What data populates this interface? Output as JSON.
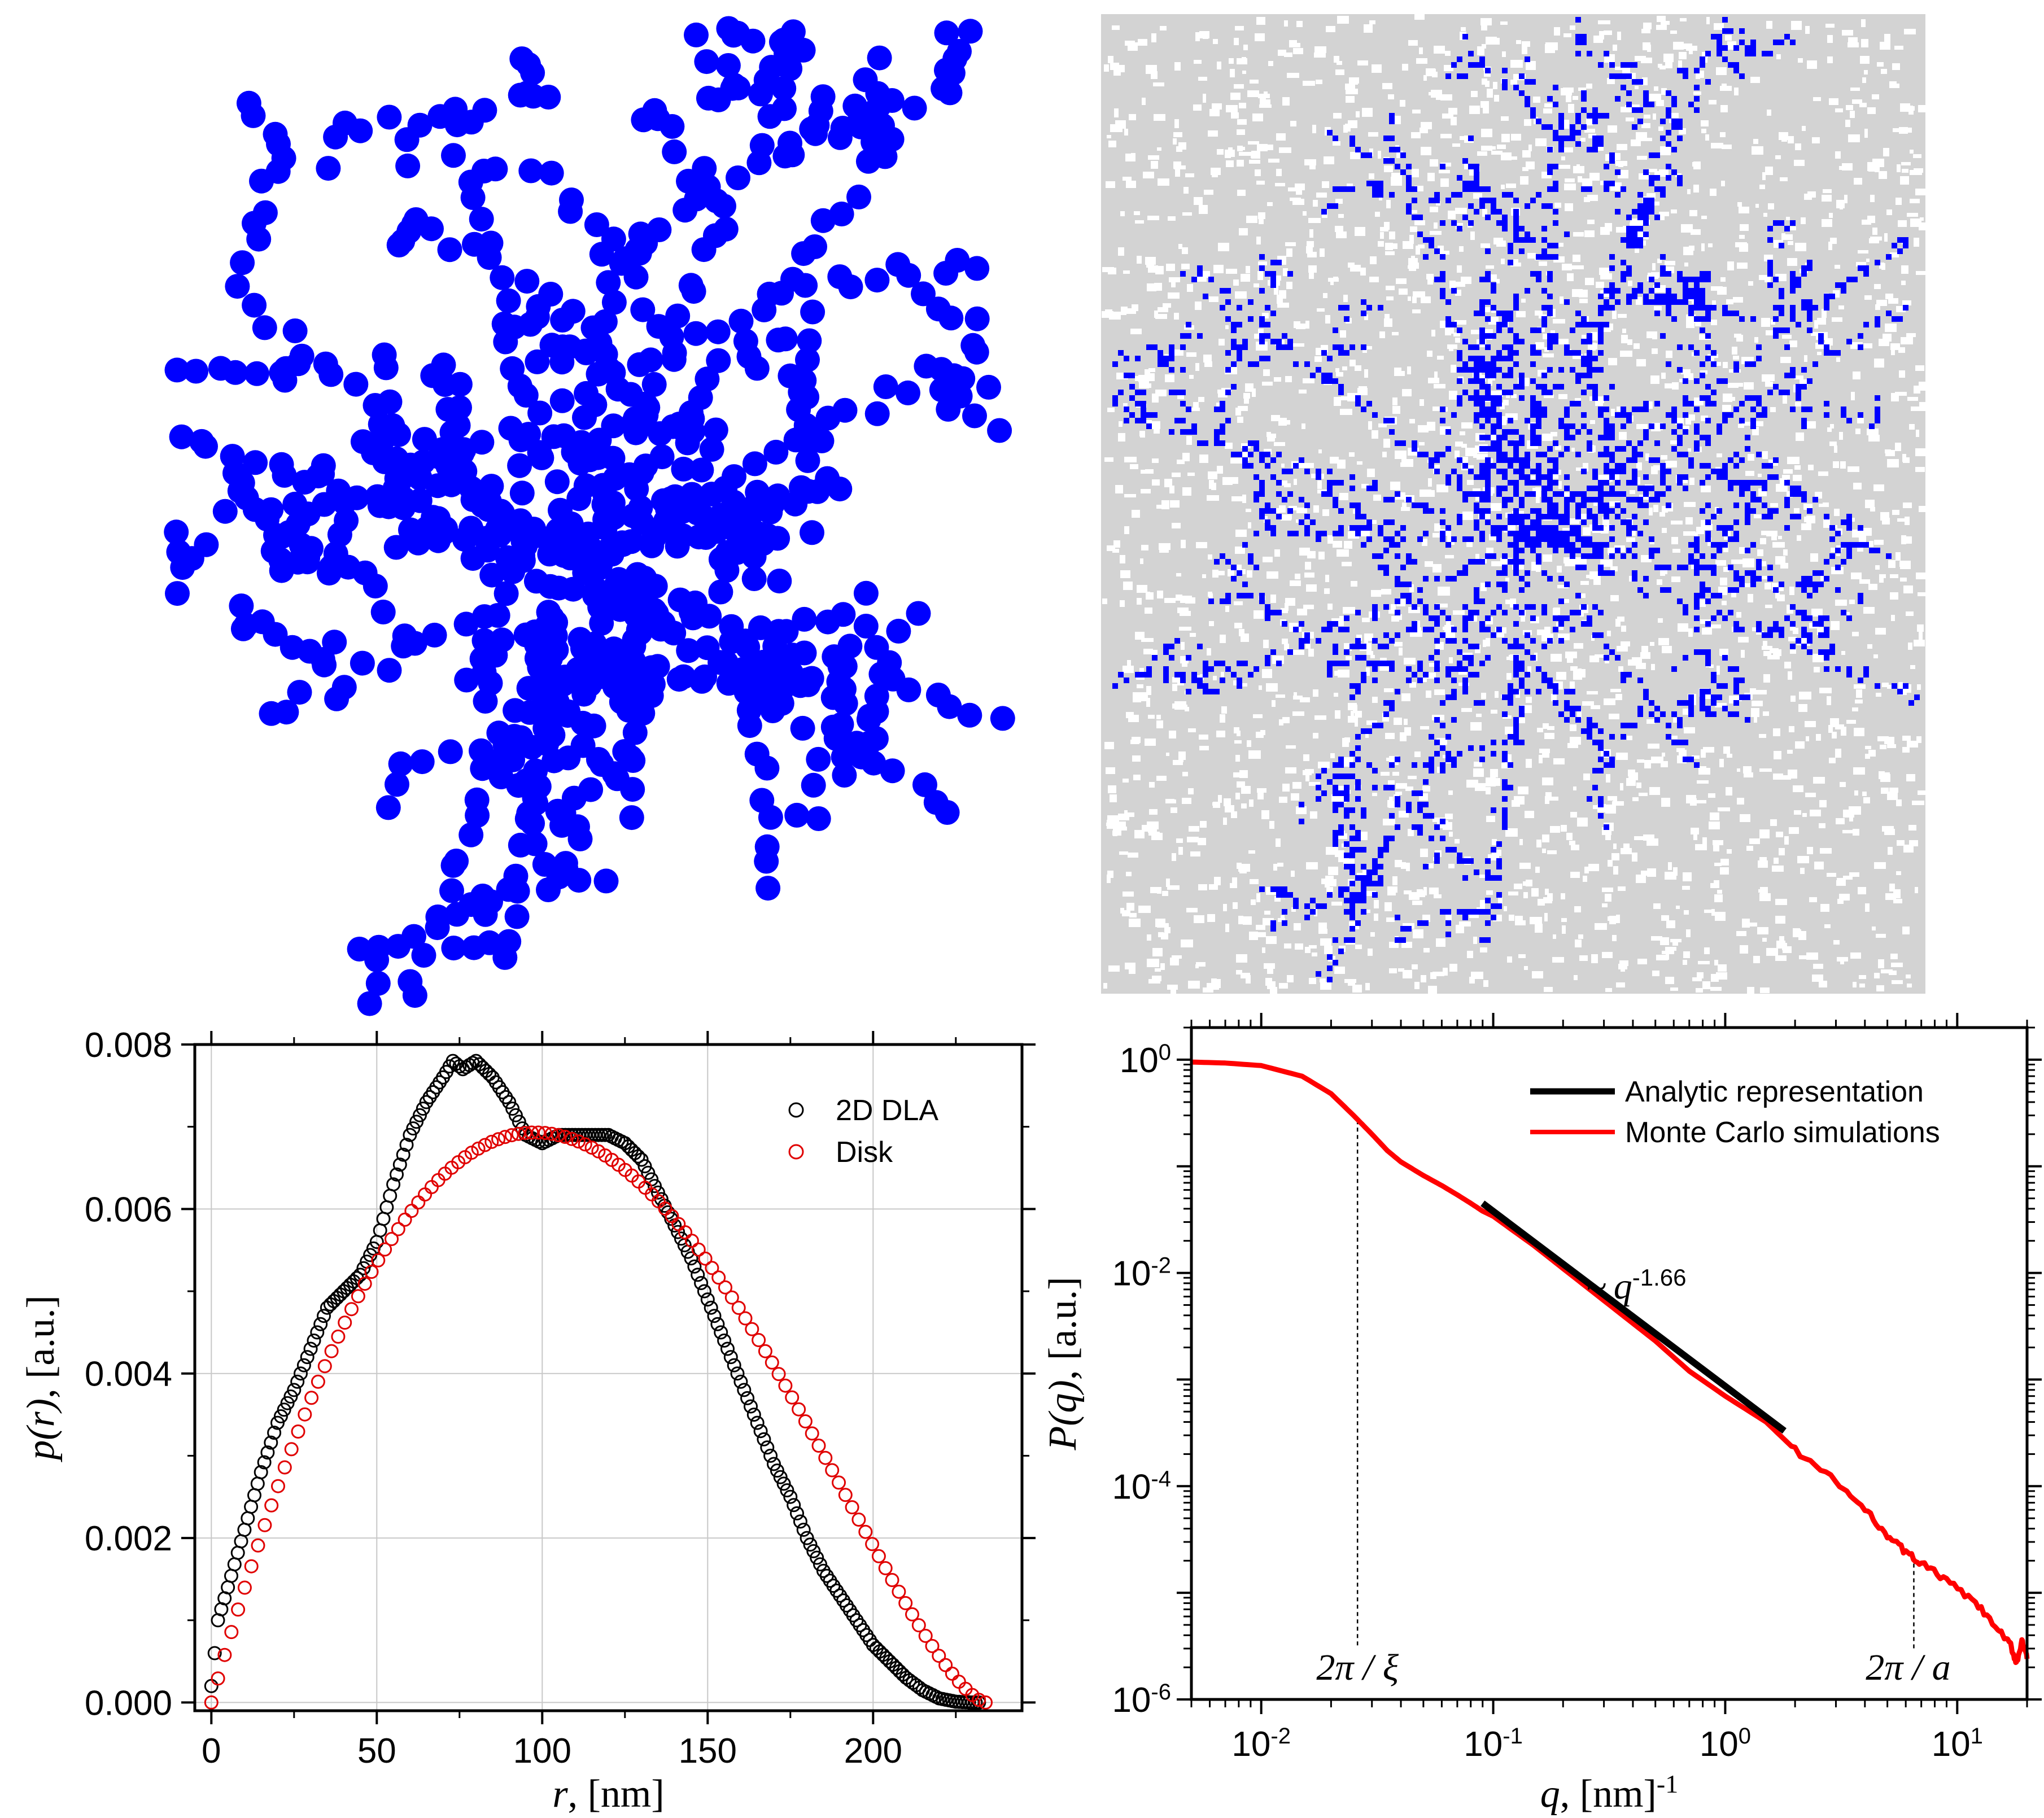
{
  "colors": {
    "dla_blue": "#0000ff",
    "lattice_grey": "#d3d3d3",
    "dla_circle_stroke": "#000000",
    "disk_circle_stroke": "#e00000",
    "mc_line": "#ff0000",
    "analytic_line": "#000000",
    "grid": "#c8c8c8"
  },
  "images": {
    "top_left": "2D off-lattice diffusion-limited aggregate of blue spherical particles",
    "top_right": "2D on-lattice diffusion-limited aggregate (blue) on grey random lattice background"
  },
  "chart_data": [
    {
      "type": "scatter",
      "xlabel": "r, [nm]",
      "xlabel_parts": {
        "var": "r",
        "rest": ", [nm]"
      },
      "ylabel": "p(r), [a.u.]",
      "ylabel_parts": {
        "var": "p(r)",
        "rest": ", [a.u.]"
      },
      "xlim": [
        -5,
        245
      ],
      "ylim": [
        -0.0001,
        0.008
      ],
      "xticks": [
        0,
        50,
        100,
        150,
        200
      ],
      "xtick_labels": [
        "0",
        "50",
        "100",
        "150",
        "200"
      ],
      "yticks": [
        0.0,
        0.002,
        0.004,
        0.006,
        0.008
      ],
      "ytick_labels": [
        "0.000",
        "0.002",
        "0.004",
        "0.006",
        "0.008"
      ],
      "grid": true,
      "legend_position": "top-right",
      "series": [
        {
          "name": "2D DLA",
          "marker": "open-circle",
          "color": "#000000",
          "points": [
            [
              0,
              0.0002
            ],
            [
              1,
              0.0006
            ],
            [
              2,
              0.001
            ],
            [
              5,
              0.0014
            ],
            [
              10,
              0.0021
            ],
            [
              15,
              0.0028
            ],
            [
              20,
              0.0034
            ],
            [
              25,
              0.0038
            ],
            [
              30,
              0.0043
            ],
            [
              35,
              0.0048
            ],
            [
              40,
              0.005
            ],
            [
              45,
              0.0052
            ],
            [
              50,
              0.0056
            ],
            [
              55,
              0.0063
            ],
            [
              60,
              0.0069
            ],
            [
              65,
              0.0073
            ],
            [
              70,
              0.0076
            ],
            [
              73,
              0.0078
            ],
            [
              76,
              0.0077
            ],
            [
              80,
              0.0078
            ],
            [
              85,
              0.0076
            ],
            [
              90,
              0.0073
            ],
            [
              95,
              0.0069
            ],
            [
              100,
              0.0068
            ],
            [
              105,
              0.0069
            ],
            [
              110,
              0.0069
            ],
            [
              115,
              0.0069
            ],
            [
              120,
              0.0069
            ],
            [
              125,
              0.0068
            ],
            [
              130,
              0.0066
            ],
            [
              135,
              0.0062
            ],
            [
              140,
              0.0058
            ],
            [
              145,
              0.0054
            ],
            [
              150,
              0.0049
            ],
            [
              155,
              0.0044
            ],
            [
              160,
              0.0039
            ],
            [
              165,
              0.0034
            ],
            [
              170,
              0.0029
            ],
            [
              175,
              0.0025
            ],
            [
              180,
              0.002
            ],
            [
              185,
              0.0016
            ],
            [
              190,
              0.0013
            ],
            [
              195,
              0.001
            ],
            [
              200,
              0.0007
            ],
            [
              205,
              0.0005
            ],
            [
              210,
              0.0003
            ],
            [
              215,
              0.00015
            ],
            [
              220,
              5e-05
            ],
            [
              225,
              1e-05
            ],
            [
              230,
              0.0
            ]
          ]
        },
        {
          "name": "Disk",
          "marker": "open-circle",
          "color": "#e00000",
          "function": "disk_pr",
          "diameter_nm": 234,
          "peak": 0.00693,
          "x_range": [
            0,
            234
          ],
          "n_points": 117
        }
      ]
    },
    {
      "type": "line",
      "xlabel": "q, [nm]-1",
      "xlabel_parts": {
        "var": "q",
        "rest": ", [nm]",
        "sup": "-1"
      },
      "ylabel": "P(q), [a.u.]",
      "ylabel_parts": {
        "var": "P(q)",
        "rest": ", [a.u.]"
      },
      "xscale": "log",
      "yscale": "log",
      "xlim": [
        0.005,
        20
      ],
      "ylim": [
        1e-06,
        2
      ],
      "xtick_labels": [
        {
          "base": "10",
          "exp": "-2",
          "value": 0.01
        },
        {
          "base": "10",
          "exp": "-1",
          "value": 0.1
        },
        {
          "base": "10",
          "exp": "0",
          "value": 1
        },
        {
          "base": "10",
          "exp": "1",
          "value": 10
        }
      ],
      "ytick_labels": [
        {
          "base": "10",
          "exp": "0",
          "value": 1
        },
        {
          "base": "10",
          "exp": "-2",
          "value": 0.01
        },
        {
          "base": "10",
          "exp": "-4",
          "value": 0.0001
        },
        {
          "base": "10",
          "exp": "-6",
          "value": 1e-06
        }
      ],
      "grid": false,
      "legend_position": "top-right",
      "series": [
        {
          "name": "Analytic representation",
          "color": "#000000",
          "points": [
            [
              0.09,
              0.045
            ],
            [
              1.8,
              0.00033
            ]
          ]
        },
        {
          "name": "Monte Carlo simulations",
          "color": "#ff0000",
          "points": [
            [
              0.005,
              0.95
            ],
            [
              0.007,
              0.93
            ],
            [
              0.01,
              0.88
            ],
            [
              0.015,
              0.7
            ],
            [
              0.02,
              0.48
            ],
            [
              0.025,
              0.3
            ],
            [
              0.03,
              0.2
            ],
            [
              0.035,
              0.14
            ],
            [
              0.04,
              0.11
            ],
            [
              0.05,
              0.082
            ],
            [
              0.06,
              0.066
            ],
            [
              0.07,
              0.054
            ],
            [
              0.08,
              0.045
            ],
            [
              0.09,
              0.038
            ],
            [
              0.1,
              0.034
            ],
            [
              0.15,
              0.018
            ],
            [
              0.2,
              0.011
            ],
            [
              0.3,
              0.0055
            ],
            [
              0.5,
              0.0023
            ],
            [
              0.7,
              0.0012
            ],
            [
              1.0,
              0.0007
            ],
            [
              1.5,
              0.0004
            ],
            [
              2.0,
              0.00022
            ],
            [
              3.0,
              0.00011
            ],
            [
              4.0,
              6e-05
            ],
            [
              5.0,
              3.5e-05
            ],
            [
              6.0,
              2.4e-05
            ],
            [
              7.0,
              1.9e-05
            ],
            [
              9.0,
              1.3e-05
            ],
            [
              12.0,
              8e-06
            ],
            [
              15.0,
              4.5e-06
            ],
            [
              17.0,
              3.2e-06
            ],
            [
              18.0,
              2.2e-06
            ],
            [
              19.0,
              3.5e-06
            ],
            [
              20.0,
              2.4e-06
            ]
          ]
        }
      ],
      "annotations": {
        "slope_prefix": "~",
        "slope_var": "q",
        "slope_exp": "-1.66",
        "xi_label": "2π / ξ",
        "xi_q": 0.026,
        "a_label": "2π / a",
        "a_q": 6.5
      }
    }
  ]
}
